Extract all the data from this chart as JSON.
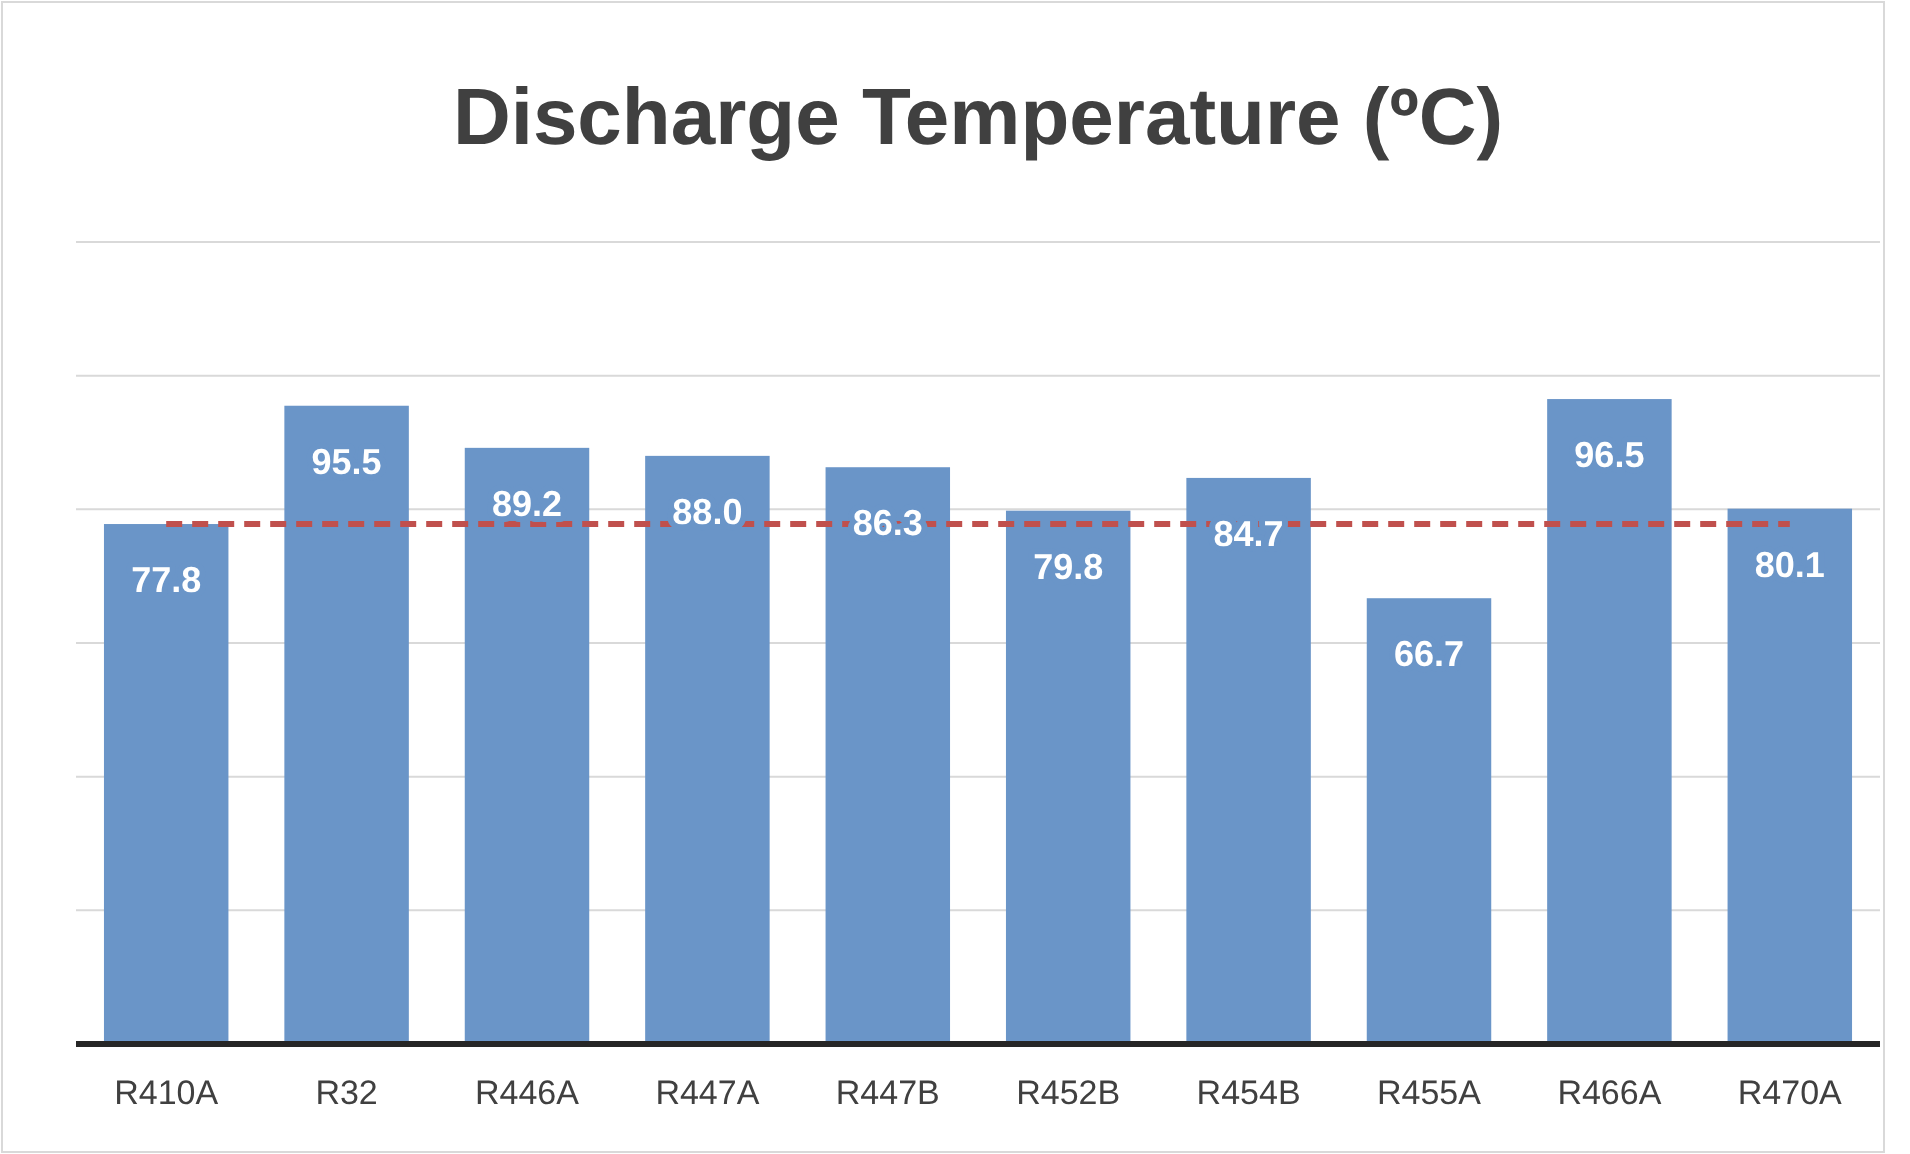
{
  "chart_data": {
    "type": "bar",
    "title": "Discharge Temperature (ºC)",
    "categories": [
      "R410A",
      "R32",
      "R446A",
      "R447A",
      "R447B",
      "R452B",
      "R454B",
      "R455A",
      "R466A",
      "R470A"
    ],
    "values": [
      77.8,
      95.5,
      89.2,
      88.0,
      86.3,
      79.8,
      84.7,
      66.7,
      96.5,
      80.1
    ],
    "value_labels": [
      "77.8",
      "95.5",
      "89.2",
      "88.0",
      "86.3",
      "79.8",
      "84.7",
      "66.7",
      "96.5",
      "80.1"
    ],
    "color": "#6a95c8",
    "ylim": [
      0,
      120
    ],
    "yticks": [
      {
        "value": 0,
        "label": null
      },
      {
        "value": 20,
        "label": null
      },
      {
        "value": 40,
        "label": null
      },
      {
        "value": 60,
        "label": null
      },
      {
        "value": 80,
        "label": null
      },
      {
        "value": 100,
        "label": null
      },
      {
        "value": 120,
        "label": null
      }
    ],
    "grid": "y",
    "ref_lines": [
      {
        "axis": "y",
        "value": 77.8,
        "color": "#c0504d",
        "line_style": "dashed"
      }
    ]
  }
}
